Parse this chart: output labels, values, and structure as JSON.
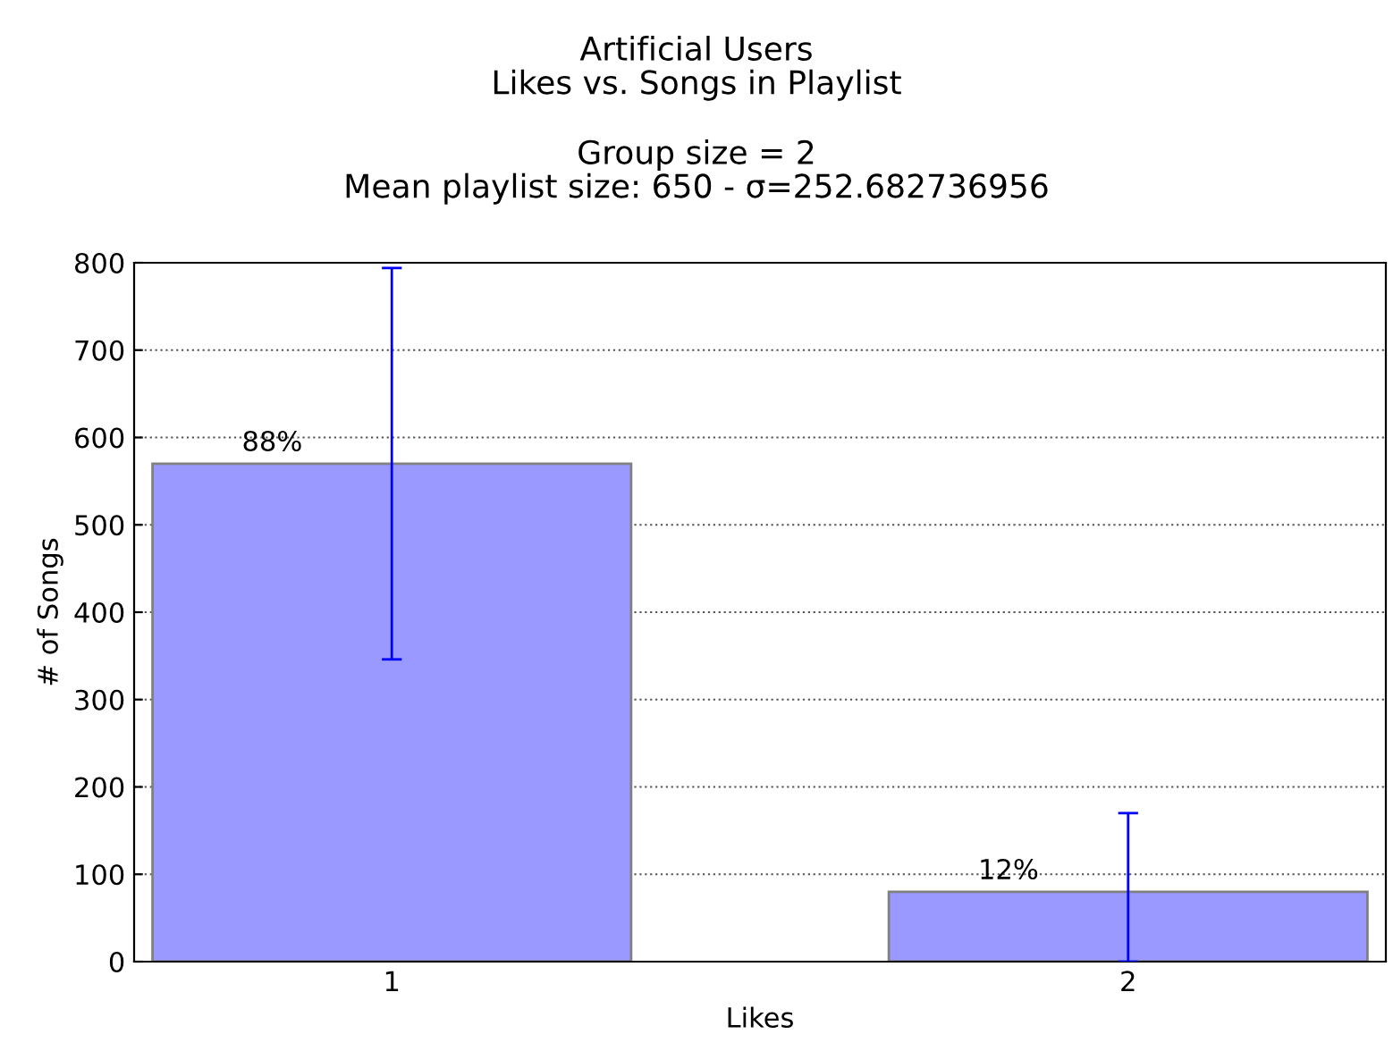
{
  "chart_data": {
    "type": "bar",
    "title": "Artificial Users\nLikes vs. Songs in Playlist",
    "subtitle": "Group size = 2\nMean playlist size: 650 - σ=252.682736956",
    "xlabel": "Likes",
    "ylabel": "# of Songs",
    "categories": [
      "1",
      "2"
    ],
    "values": [
      570,
      80
    ],
    "color": "#9999ff",
    "errors": [
      [
        346,
        794
      ],
      [
        0,
        170
      ]
    ],
    "annotations": [
      "88%",
      "12%"
    ],
    "ylim": [
      0,
      800
    ],
    "yticks": [
      0,
      100,
      200,
      300,
      400,
      500,
      600,
      700,
      800
    ],
    "grid": "y"
  }
}
